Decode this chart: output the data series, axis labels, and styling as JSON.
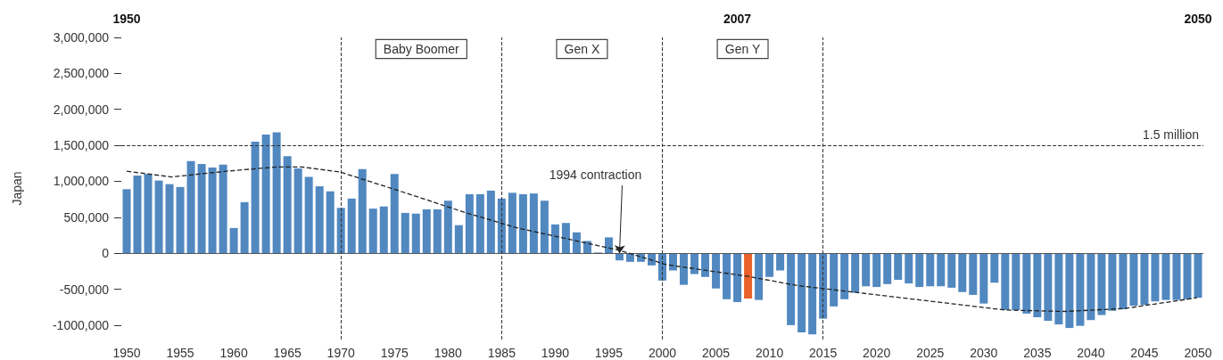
{
  "chart_data": {
    "type": "bar",
    "ylabel": "Japan",
    "x": [
      1950,
      1951,
      1952,
      1953,
      1954,
      1955,
      1956,
      1957,
      1958,
      1959,
      1960,
      1961,
      1962,
      1963,
      1964,
      1965,
      1966,
      1967,
      1968,
      1969,
      1970,
      1971,
      1972,
      1973,
      1974,
      1975,
      1976,
      1977,
      1978,
      1979,
      1980,
      1981,
      1982,
      1983,
      1984,
      1985,
      1986,
      1987,
      1988,
      1989,
      1990,
      1991,
      1992,
      1993,
      1994,
      1995,
      1996,
      1997,
      1998,
      1999,
      2000,
      2001,
      2002,
      2003,
      2004,
      2005,
      2006,
      2007,
      2008,
      2009,
      2010,
      2011,
      2012,
      2013,
      2014,
      2015,
      2016,
      2017,
      2018,
      2019,
      2020,
      2021,
      2022,
      2023,
      2024,
      2025,
      2026,
      2027,
      2028,
      2029,
      2030,
      2031,
      2032,
      2033,
      2034,
      2035,
      2036,
      2037,
      2038,
      2039,
      2040,
      2041,
      2042,
      2043,
      2044,
      2045,
      2046,
      2047,
      2048,
      2049,
      2050
    ],
    "series": [
      {
        "values": [
          890000,
          1080000,
          1100000,
          1010000,
          960000,
          920000,
          1280000,
          1240000,
          1190000,
          1230000,
          350000,
          710000,
          1550000,
          1650000,
          1680000,
          1350000,
          1180000,
          1060000,
          930000,
          860000,
          630000,
          760000,
          1170000,
          620000,
          650000,
          1100000,
          560000,
          550000,
          610000,
          610000,
          730000,
          390000,
          820000,
          820000,
          870000,
          760000,
          840000,
          820000,
          830000,
          730000,
          400000,
          420000,
          290000,
          170000,
          10000,
          220000,
          -100000,
          -120000,
          -120000,
          -170000,
          -380000,
          -240000,
          -440000,
          -290000,
          -330000,
          -490000,
          -640000,
          -680000,
          -630000,
          -650000,
          -330000,
          -240000,
          -1000000,
          -1100000,
          -1130000,
          -910000,
          -740000,
          -640000,
          -550000,
          -460000,
          -470000,
          -430000,
          -370000,
          -420000,
          -470000,
          -460000,
          -460000,
          -480000,
          -540000,
          -580000,
          -700000,
          -410000,
          -790000,
          -790000,
          -840000,
          -890000,
          -940000,
          -990000,
          -1040000,
          -1010000,
          -930000,
          -860000,
          -800000,
          -780000,
          -730000,
          -720000,
          -670000,
          -650000,
          -650000,
          -640000,
          -620000
        ],
        "colors": [
          "#5188c0",
          "#5188c0",
          "#5188c0",
          "#5188c0",
          "#5188c0",
          "#5188c0",
          "#5188c0",
          "#5188c0",
          "#5188c0",
          "#5188c0",
          "#5188c0",
          "#5188c0",
          "#5188c0",
          "#5188c0",
          "#5188c0",
          "#5188c0",
          "#5188c0",
          "#5188c0",
          "#5188c0",
          "#5188c0",
          "#5188c0",
          "#5188c0",
          "#5188c0",
          "#5188c0",
          "#5188c0",
          "#5188c0",
          "#5188c0",
          "#5188c0",
          "#5188c0",
          "#5188c0",
          "#5188c0",
          "#5188c0",
          "#5188c0",
          "#5188c0",
          "#5188c0",
          "#5188c0",
          "#5188c0",
          "#5188c0",
          "#5188c0",
          "#5188c0",
          "#5188c0",
          "#5188c0",
          "#5188c0",
          "#5188c0",
          "#5188c0",
          "#5188c0",
          "#5188c0",
          "#5188c0",
          "#5188c0",
          "#5188c0",
          "#5188c0",
          "#5188c0",
          "#5188c0",
          "#5188c0",
          "#5188c0",
          "#5188c0",
          "#5188c0",
          "#5188c0",
          "#e8622a",
          "#5188c0",
          "#5188c0",
          "#5188c0",
          "#5188c0",
          "#5188c0",
          "#5188c0",
          "#5188c0",
          "#5188c0",
          "#5188c0",
          "#5188c0",
          "#5188c0",
          "#5188c0",
          "#5188c0",
          "#5188c0",
          "#5188c0",
          "#5188c0",
          "#5188c0",
          "#5188c0",
          "#5188c0",
          "#5188c0",
          "#5188c0",
          "#5188c0",
          "#5188c0",
          "#5188c0",
          "#5188c0",
          "#5188c0",
          "#5188c0",
          "#5188c0",
          "#5188c0",
          "#5188c0",
          "#5188c0",
          "#5188c0",
          "#5188c0",
          "#5188c0",
          "#5188c0",
          "#5188c0",
          "#5188c0",
          "#5188c0",
          "#5188c0",
          "#5188c0",
          "#5188c0",
          "#5188c0"
        ]
      },
      {
        "type": "line",
        "color": "#222222",
        "line_style": "dashed",
        "marker": "none",
        "x": [
          1950,
          1954.2,
          1959.3,
          1964.1,
          1966.3,
          1969.9,
          1976,
          1981.5,
          1986.5,
          1996,
          2000.4,
          2007.9,
          2012.6,
          2019.5,
          2032,
          2037.5,
          2043.1,
          2049.9
        ],
        "values": [
          1140000,
          1060000,
          1140000,
          1200000,
          1200000,
          1130000,
          840000,
          570000,
          350000,
          40000,
          -160000,
          -320000,
          -450000,
          -570000,
          -790000,
          -810000,
          -770000,
          -620000
        ]
      }
    ],
    "xlim": [
      1949.5,
      2050.5
    ],
    "xticks": [
      1950,
      1955,
      1960,
      1965,
      1970,
      1975,
      1980,
      1985,
      1990,
      1995,
      2000,
      2005,
      2010,
      2015,
      2020,
      2025,
      2030,
      2035,
      2040,
      2045,
      2050
    ],
    "x2lim": [
      1949.5,
      2050.5
    ],
    "x2ticks": [
      1950,
      2007,
      2050
    ],
    "ylim": [
      -1200000,
      3000000
    ],
    "yticks": [
      {
        "value": -1000000,
        "label": "-1000,000"
      },
      {
        "value": -500000,
        "label": "-500,000"
      },
      0,
      {
        "value": 500000,
        "label": "500,000"
      },
      {
        "value": 1000000,
        "label": "1,000,000"
      },
      {
        "value": 1500000,
        "label": "1,500,000"
      },
      {
        "value": 2000000,
        "label": "2,000,000"
      },
      {
        "value": 2500000,
        "label": "2,500,000"
      },
      {
        "value": 3000000,
        "label": "3,000,000"
      }
    ],
    "grid": false,
    "ref_lines": [
      {
        "axis": "y",
        "value": 1500000,
        "label": "1.5 million",
        "color": "#333333",
        "line_style": "dashed"
      },
      {
        "axis": "y",
        "value": 0,
        "color": "#555555",
        "line_style": "solid"
      },
      {
        "axis": "x",
        "value": 1970,
        "color": "#333333",
        "line_style": "dashed"
      },
      {
        "axis": "x",
        "value": 1985,
        "color": "#333333",
        "line_style": "dashed"
      },
      {
        "axis": "x",
        "value": 2000,
        "color": "#333333",
        "line_style": "dashed"
      },
      {
        "axis": "x",
        "value": 2015,
        "color": "#333333",
        "line_style": "dashed"
      }
    ],
    "annotations": [
      "Baby Boomer",
      "Gen X",
      "Gen Y",
      {
        "text": "1994 contraction",
        "x": 1996,
        "y": 0
      }
    ]
  }
}
